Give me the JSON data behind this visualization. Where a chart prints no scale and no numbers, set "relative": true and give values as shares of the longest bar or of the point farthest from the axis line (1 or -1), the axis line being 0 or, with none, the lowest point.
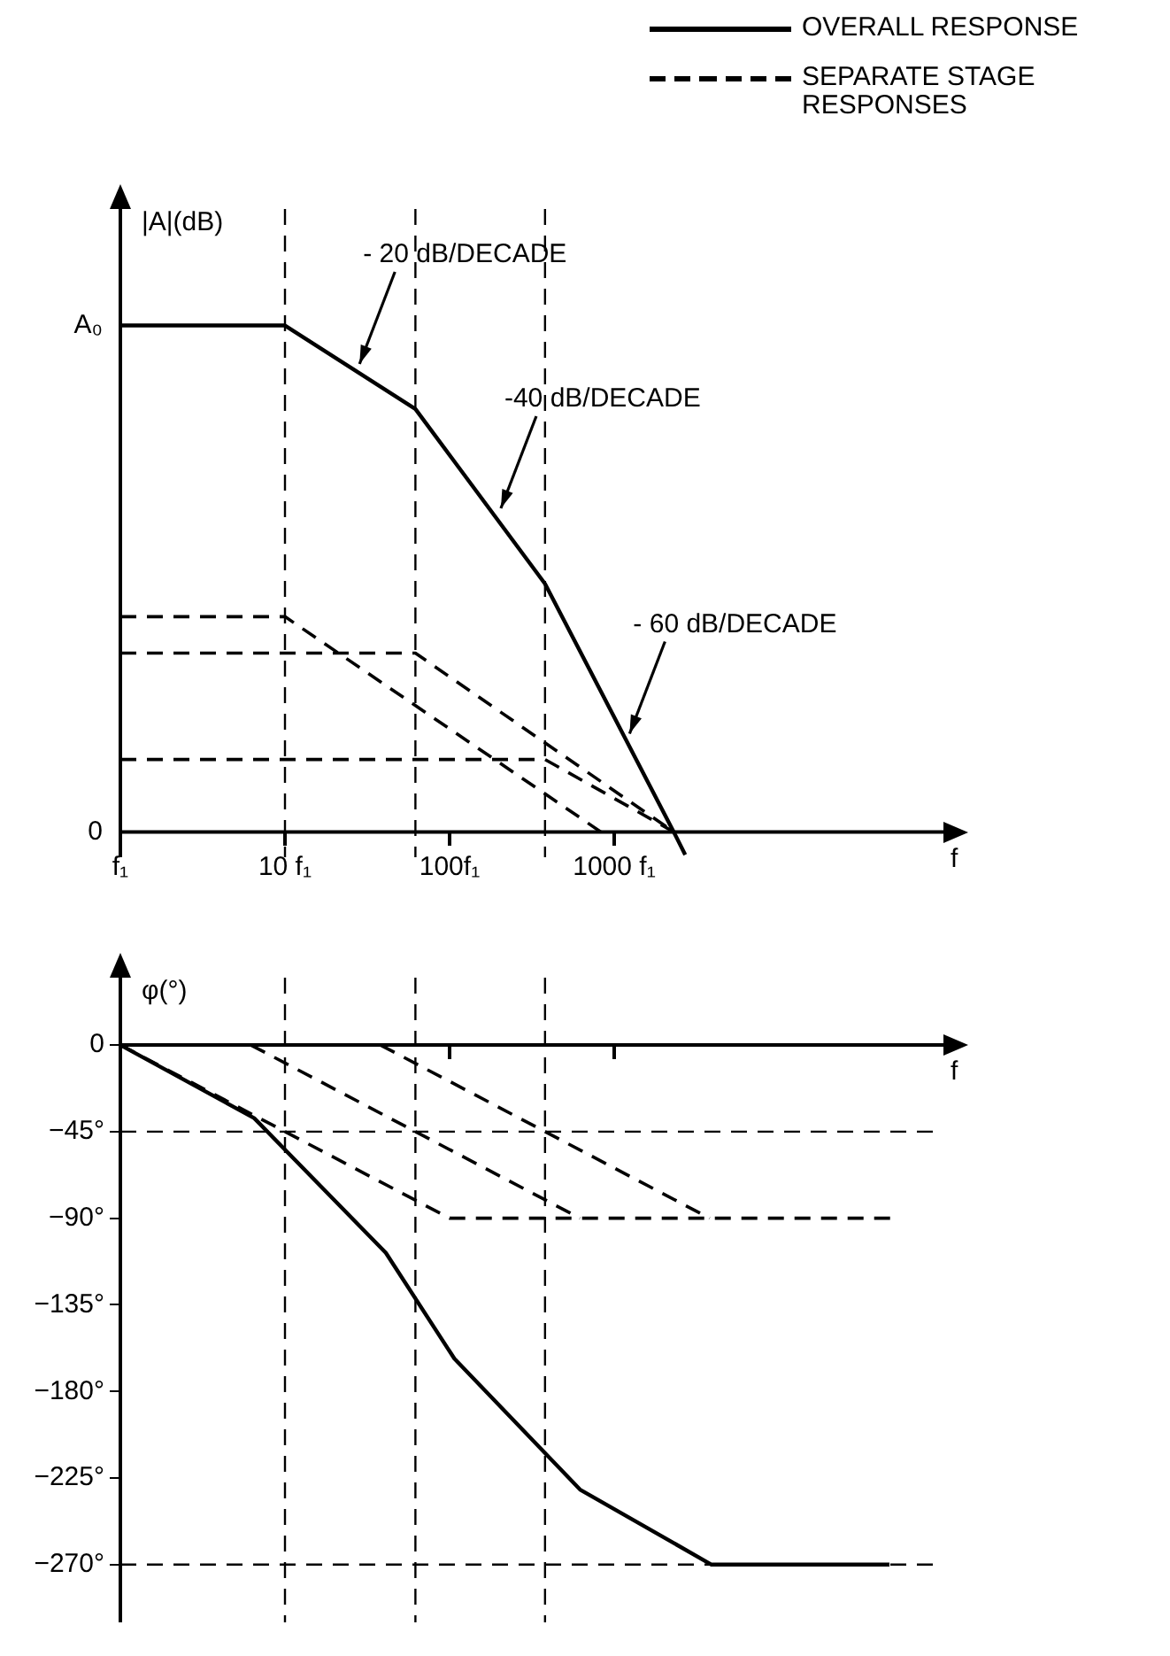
{
  "chart_data": [
    {
      "type": "line",
      "xlabel": "f",
      "ylabel": "|A|(dB)",
      "log": "x",
      "xlim": [
        1,
        100000
      ],
      "xticks": [
        {
          "value": 1,
          "label": "f₁"
        },
        {
          "value": 10,
          "label": "10 f₁"
        },
        {
          "value": 100,
          "label": "100f₁"
        },
        {
          "value": 1000,
          "label": "1000 f₁"
        }
      ],
      "relative": true,
      "legend": "top right",
      "grid": false,
      "series": [
        {
          "name": "OVERALL RESPONSE",
          "color": "#000000",
          "line_style": "solid",
          "x": [
            1,
            10,
            62,
            380,
            2300,
            2700
          ],
          "values": [
            1,
            1,
            0.835,
            0.49,
            0,
            -0.045
          ]
        },
        {
          "name": "SEPARATE STAGE RESPONSES",
          "color": "#000000",
          "line_style": "dashed",
          "x": [
            1,
            10,
            830
          ],
          "values": [
            0.425,
            0.425,
            0
          ]
        },
        {
          "color": "#000000",
          "line_style": "dashed",
          "x": [
            1,
            62,
            2300
          ],
          "values": [
            0.353,
            0.353,
            0
          ]
        },
        {
          "color": "#000000",
          "line_style": "dashed",
          "x": [
            1,
            380,
            2300
          ],
          "values": [
            0.143,
            0.143,
            0
          ]
        }
      ],
      "ref_lines": [
        {
          "axis": "x",
          "value": 10,
          "line_style": "dashed"
        },
        {
          "axis": "x",
          "value": 62,
          "line_style": "dashed"
        },
        {
          "axis": "x",
          "value": 380,
          "line_style": "dashed"
        }
      ],
      "annotations": [
        "A₀",
        "0",
        {
          "text": "- 20 dB/DECADE",
          "x": 27,
          "y": 0.91
        },
        {
          "text": "-40 dB/DECADE",
          "x": 195,
          "y": 0.625
        },
        {
          "text": "- 60 dB/DECADE",
          "x": 1180,
          "y": 0.18
        }
      ]
    },
    {
      "type": "line",
      "xlabel": "f",
      "ylabel": "φ(°)",
      "log": "x",
      "xlim": [
        1,
        100000
      ],
      "xticks": [
        {
          "value": 100,
          "label": null
        },
        {
          "value": 1000,
          "label": null
        }
      ],
      "ylim": [
        -300,
        35
      ],
      "yticks": [
        0,
        {
          "value": -45,
          "label": "−45°"
        },
        {
          "value": -90,
          "label": "−90°"
        },
        {
          "value": -135,
          "label": "−135°"
        },
        {
          "value": -180,
          "label": "−180°"
        },
        {
          "value": -225,
          "label": "−225°"
        },
        {
          "value": -270,
          "label": "−270°"
        }
      ],
      "tick_labels": "y",
      "grid": false,
      "series": [
        {
          "color": "#000000",
          "line_style": "solid",
          "x": [
            1,
            6.5,
            41,
            107,
            620,
            3900,
            47000
          ],
          "values": [
            0,
            -38,
            -108,
            -163,
            -231,
            -270,
            -270
          ]
        },
        {
          "color": "#000000",
          "line_style": "dashed",
          "x": [
            1,
            10,
            100,
            50000
          ],
          "values": [
            0,
            -45,
            -90,
            -90
          ]
        },
        {
          "color": "#000000",
          "line_style": "dashed",
          "x": [
            6.2,
            62,
            620
          ],
          "values": [
            0,
            -45,
            -90
          ]
        },
        {
          "color": "#000000",
          "line_style": "dashed",
          "x": [
            38,
            380,
            3800
          ],
          "values": [
            0,
            -45,
            -90
          ]
        }
      ],
      "ref_lines": [
        {
          "axis": "x",
          "value": 10,
          "line_style": "dashed"
        },
        {
          "axis": "x",
          "value": 62,
          "line_style": "dashed"
        },
        {
          "axis": "x",
          "value": 380,
          "line_style": "dashed"
        },
        {
          "axis": "y",
          "value": -45,
          "line_style": "dashed"
        },
        {
          "axis": "y",
          "value": -270,
          "line_style": "dashed"
        }
      ]
    }
  ]
}
